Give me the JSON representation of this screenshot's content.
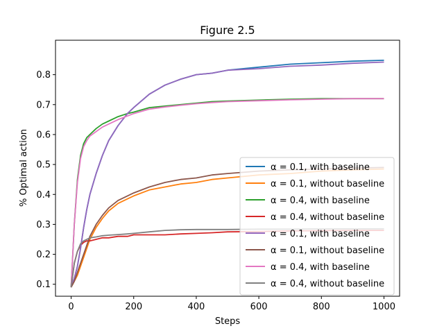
{
  "chart_data": {
    "type": "line",
    "title": "Figure 2.5",
    "xlabel": "Steps",
    "ylabel": "% Optimal action",
    "xlim": [
      -50,
      1050
    ],
    "ylim": [
      0.06,
      0.915
    ],
    "xticks": [
      0,
      200,
      400,
      600,
      800,
      1000
    ],
    "yticks": [
      0.1,
      0.2,
      0.3,
      0.4,
      0.5,
      0.6,
      0.7,
      0.8
    ],
    "grid": false,
    "legend_position": "lower-right",
    "x": [
      0,
      10,
      20,
      30,
      40,
      50,
      60,
      80,
      100,
      120,
      150,
      180,
      200,
      250,
      300,
      350,
      400,
      450,
      500,
      600,
      700,
      800,
      900,
      1000
    ],
    "series": [
      {
        "name": "α = 0.1, with baseline",
        "color": "#1f77b4",
        "values": [
          0.09,
          0.12,
          0.16,
          0.22,
          0.29,
          0.35,
          0.4,
          0.47,
          0.53,
          0.58,
          0.63,
          0.67,
          0.69,
          0.735,
          0.765,
          0.785,
          0.8,
          0.805,
          0.815,
          0.825,
          0.835,
          0.84,
          0.845,
          0.848
        ]
      },
      {
        "name": "α = 0.1, without baseline",
        "color": "#ff7f0e",
        "values": [
          0.09,
          0.11,
          0.13,
          0.16,
          0.19,
          0.22,
          0.25,
          0.29,
          0.32,
          0.345,
          0.37,
          0.385,
          0.395,
          0.415,
          0.425,
          0.435,
          0.44,
          0.45,
          0.455,
          0.465,
          0.47,
          0.478,
          0.482,
          0.485
        ]
      },
      {
        "name": "α = 0.4, with baseline",
        "color": "#2ca02c",
        "values": [
          0.09,
          0.3,
          0.45,
          0.53,
          0.57,
          0.59,
          0.6,
          0.62,
          0.635,
          0.645,
          0.66,
          0.67,
          0.675,
          0.69,
          0.695,
          0.7,
          0.705,
          0.71,
          0.712,
          0.715,
          0.718,
          0.72,
          0.72,
          0.72
        ]
      },
      {
        "name": "α = 0.4, without baseline",
        "color": "#d62728",
        "values": [
          0.09,
          0.17,
          0.21,
          0.23,
          0.24,
          0.245,
          0.245,
          0.25,
          0.255,
          0.255,
          0.26,
          0.26,
          0.265,
          0.265,
          0.265,
          0.268,
          0.27,
          0.272,
          0.275,
          0.276,
          0.278,
          0.279,
          0.28,
          0.28
        ]
      },
      {
        "name": "α = 0.1, with baseline",
        "color": "#9467bd",
        "values": [
          0.09,
          0.12,
          0.16,
          0.22,
          0.29,
          0.35,
          0.4,
          0.47,
          0.53,
          0.58,
          0.63,
          0.67,
          0.69,
          0.735,
          0.765,
          0.785,
          0.8,
          0.805,
          0.815,
          0.82,
          0.828,
          0.832,
          0.838,
          0.842
        ]
      },
      {
        "name": "α = 0.1, without baseline",
        "color": "#8c564b",
        "values": [
          0.09,
          0.11,
          0.14,
          0.17,
          0.2,
          0.23,
          0.26,
          0.3,
          0.33,
          0.355,
          0.38,
          0.395,
          0.405,
          0.425,
          0.44,
          0.45,
          0.455,
          0.465,
          0.47,
          0.478,
          0.482,
          0.485,
          0.488,
          0.49
        ]
      },
      {
        "name": "α = 0.4, with baseline",
        "color": "#e377c2",
        "values": [
          0.09,
          0.3,
          0.44,
          0.52,
          0.56,
          0.58,
          0.595,
          0.61,
          0.625,
          0.635,
          0.65,
          0.662,
          0.67,
          0.685,
          0.692,
          0.698,
          0.703,
          0.707,
          0.71,
          0.713,
          0.716,
          0.718,
          0.72,
          0.72
        ]
      },
      {
        "name": "α = 0.4, without baseline",
        "color": "#7f7f7f",
        "values": [
          0.09,
          0.17,
          0.21,
          0.235,
          0.245,
          0.25,
          0.255,
          0.258,
          0.262,
          0.264,
          0.266,
          0.268,
          0.27,
          0.275,
          0.28,
          0.282,
          0.283,
          0.283,
          0.283,
          0.284,
          0.284,
          0.285,
          0.285,
          0.285
        ]
      }
    ]
  }
}
